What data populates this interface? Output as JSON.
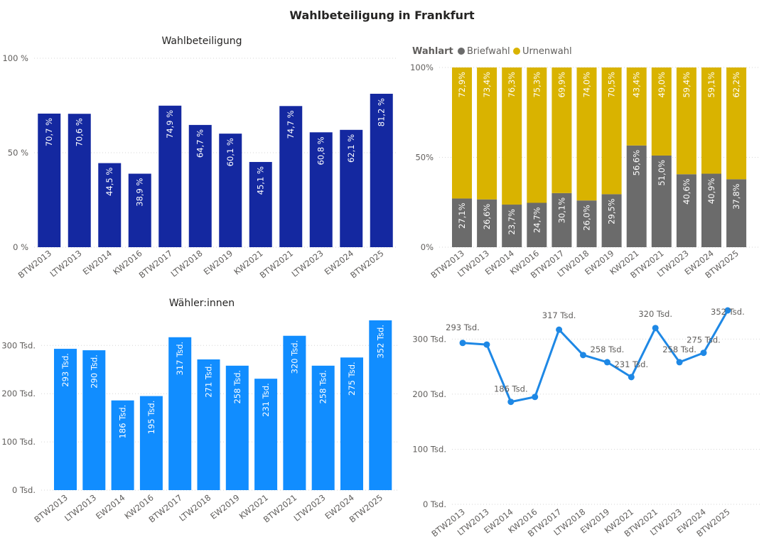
{
  "title": "Wahlbeteiligung in Frankfurt",
  "colors": {
    "turnout_bar": "#1428a0",
    "voters_bar": "#118dff",
    "line": "#1e88e5",
    "briefwahl": "#6b6b6b",
    "urnenwahl": "#d9b300"
  },
  "chart_data": [
    {
      "type": "bar",
      "title": "Wahlbeteiligung",
      "categories": [
        "BTW2013",
        "LTW2013",
        "EW2014",
        "KW2016",
        "BTW2017",
        "LTW2018",
        "EW2019",
        "KW2021",
        "BTW2021",
        "LTW2023",
        "EW2024",
        "BTW2025"
      ],
      "values": [
        70.7,
        70.6,
        44.5,
        38.9,
        74.9,
        64.7,
        60.1,
        45.1,
        74.7,
        60.8,
        62.1,
        81.2
      ],
      "value_labels": [
        "70,7 %",
        "70,6 %",
        "44,5 %",
        "38,9 %",
        "74,9 %",
        "64,7 %",
        "60,1 %",
        "45,1 %",
        "74,7 %",
        "60,8 %",
        "62,1 %",
        "81,2 %"
      ],
      "ylim": [
        0,
        100
      ],
      "yticks": [
        0,
        50,
        100
      ],
      "ytick_labels": [
        "0 %",
        "50 %",
        "100 %"
      ],
      "grid": true
    },
    {
      "type": "bar",
      "stacked": "percent",
      "title": "",
      "legend_title": "Wahlart",
      "legend_position": "top-left",
      "categories": [
        "BTW2013",
        "LTW2013",
        "EW2014",
        "KW2016",
        "BTW2017",
        "LTW2018",
        "EW2019",
        "KW2021",
        "BTW2021",
        "LTW2023",
        "EW2024",
        "BTW2025"
      ],
      "series": [
        {
          "name": "Briefwahl",
          "values": [
            27.1,
            26.6,
            23.7,
            24.7,
            30.1,
            26.0,
            29.5,
            56.6,
            51.0,
            40.6,
            40.9,
            37.8
          ],
          "value_labels": [
            "27,1%",
            "26,6%",
            "23,7%",
            "24,7%",
            "30,1%",
            "26,0%",
            "29,5%",
            "56,6%",
            "51,0%",
            "40,6%",
            "40,9%",
            "37,8%"
          ]
        },
        {
          "name": "Urnenwahl",
          "values": [
            72.9,
            73.4,
            76.3,
            75.3,
            69.9,
            74.0,
            70.5,
            43.4,
            49.0,
            59.4,
            59.1,
            62.2
          ],
          "value_labels": [
            "72,9%",
            "73,4%",
            "76,3%",
            "75,3%",
            "69,9%",
            "74,0%",
            "70,5%",
            "43,4%",
            "49,0%",
            "59,4%",
            "59,1%",
            "62,2%"
          ]
        }
      ],
      "ylim": [
        0,
        100
      ],
      "yticks": [
        0,
        50,
        100
      ],
      "ytick_labels": [
        "0%",
        "50%",
        "100%"
      ],
      "grid": true
    },
    {
      "type": "bar",
      "title": "Wähler:innen",
      "categories": [
        "BTW2013",
        "LTW2013",
        "EW2014",
        "KW2016",
        "BTW2017",
        "LTW2018",
        "EW2019",
        "KW2021",
        "BTW2021",
        "LTW2023",
        "EW2024",
        "BTW2025"
      ],
      "values": [
        293,
        290,
        186,
        195,
        317,
        271,
        258,
        231,
        320,
        258,
        275,
        352
      ],
      "value_labels": [
        "293 Tsd.",
        "290 Tsd.",
        "186 Tsd.",
        "195 Tsd.",
        "317 Tsd.",
        "271 Tsd.",
        "258 Tsd.",
        "231 Tsd.",
        "320 Tsd.",
        "258 Tsd.",
        "275 Tsd.",
        "352 Tsd."
      ],
      "ylim": [
        0,
        352
      ],
      "yticks": [
        0,
        100,
        200,
        300
      ],
      "ytick_labels": [
        "0 Tsd.",
        "100 Tsd.",
        "200 Tsd.",
        "300 Tsd."
      ],
      "grid": true
    },
    {
      "type": "line",
      "title": "",
      "categories": [
        "BTW2013",
        "LTW2013",
        "EW2014",
        "KW2016",
        "BTW2017",
        "LTW2018",
        "EW2019",
        "KW2021",
        "BTW2021",
        "LTW2023",
        "EW2024",
        "BTW2025"
      ],
      "values": [
        293,
        290,
        186,
        195,
        317,
        271,
        258,
        231,
        320,
        258,
        275,
        352
      ],
      "point_labels": [
        "293 Tsd.",
        "",
        "186 Tsd.",
        "",
        "317 Tsd.",
        "",
        "258 Tsd.",
        "231 Tsd.",
        "320 Tsd.",
        "258 Tsd.",
        "275 Tsd.",
        "352 Tsd."
      ],
      "ylim": [
        0,
        352
      ],
      "yticks": [
        0,
        100,
        200,
        300
      ],
      "ytick_labels": [
        "0 Tsd.",
        "100 Tsd.",
        "200 Tsd.",
        "300 Tsd."
      ],
      "grid": true
    }
  ]
}
